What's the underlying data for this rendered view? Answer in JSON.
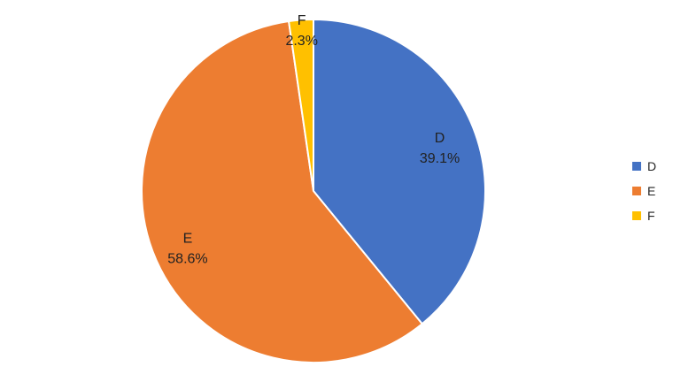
{
  "chart_data": {
    "type": "pie",
    "title": "",
    "categories": [
      "D",
      "E",
      "F"
    ],
    "values": [
      39.1,
      58.6,
      2.3
    ],
    "labels": [
      "39.1%",
      "58.6%",
      "2.3%"
    ],
    "colors": [
      "#4472C4",
      "#ED7D31",
      "#FFC000"
    ],
    "legend": {
      "position": "right",
      "entries": [
        "D",
        "E",
        "F"
      ]
    },
    "start_angle": "12 o'clock",
    "direction": "clockwise"
  }
}
